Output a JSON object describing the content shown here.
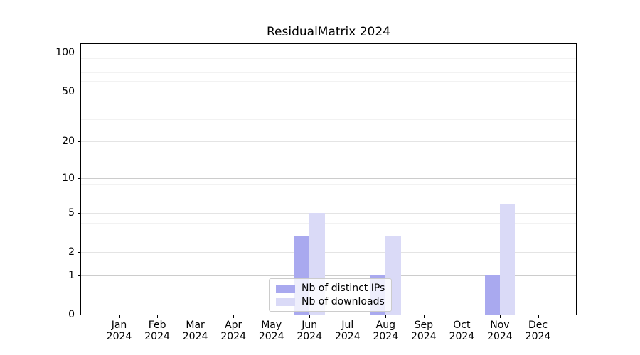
{
  "figure": {
    "title": "ResidualMatrix 2024"
  },
  "chart_data": {
    "type": "bar",
    "title": "ResidualMatrix 2024",
    "x_axis": {
      "categories": [
        "Jan",
        "Feb",
        "Mar",
        "Apr",
        "May",
        "Jun",
        "Jul",
        "Aug",
        "Sep",
        "Oct",
        "Nov",
        "Dec"
      ],
      "year_label": "2024"
    },
    "y_axis": {
      "scale": "log1p",
      "tick_values": [
        0,
        1,
        2,
        5,
        10,
        20,
        50,
        100
      ],
      "minor_gridline_values": [
        3,
        4,
        6,
        7,
        8,
        9,
        30,
        40,
        60,
        70,
        80,
        90
      ],
      "ylim": [
        0,
        115
      ]
    },
    "series": [
      {
        "name": "Nb of distinct IPs",
        "color": "#a9a9ef",
        "values": [
          0,
          0,
          0,
          0,
          0,
          3,
          0,
          1,
          0,
          0,
          1,
          0
        ]
      },
      {
        "name": "Nb of downloads",
        "color": "#dadaf7",
        "values": [
          0,
          0,
          0,
          0,
          0,
          5,
          0,
          3,
          0,
          0,
          6,
          0
        ]
      }
    ],
    "legend": {
      "position": "lower-center",
      "entries": [
        "Nb of distinct IPs",
        "Nb of downloads"
      ]
    },
    "grid": true
  },
  "colors": {
    "background": "#ffffff",
    "spine": "#000000",
    "grid_major": "#cccccc",
    "grid_mid": "#e4e4e4",
    "grid_minor": "#f2f2f2",
    "text": "#000000",
    "legend_border": "#cccccc"
  }
}
